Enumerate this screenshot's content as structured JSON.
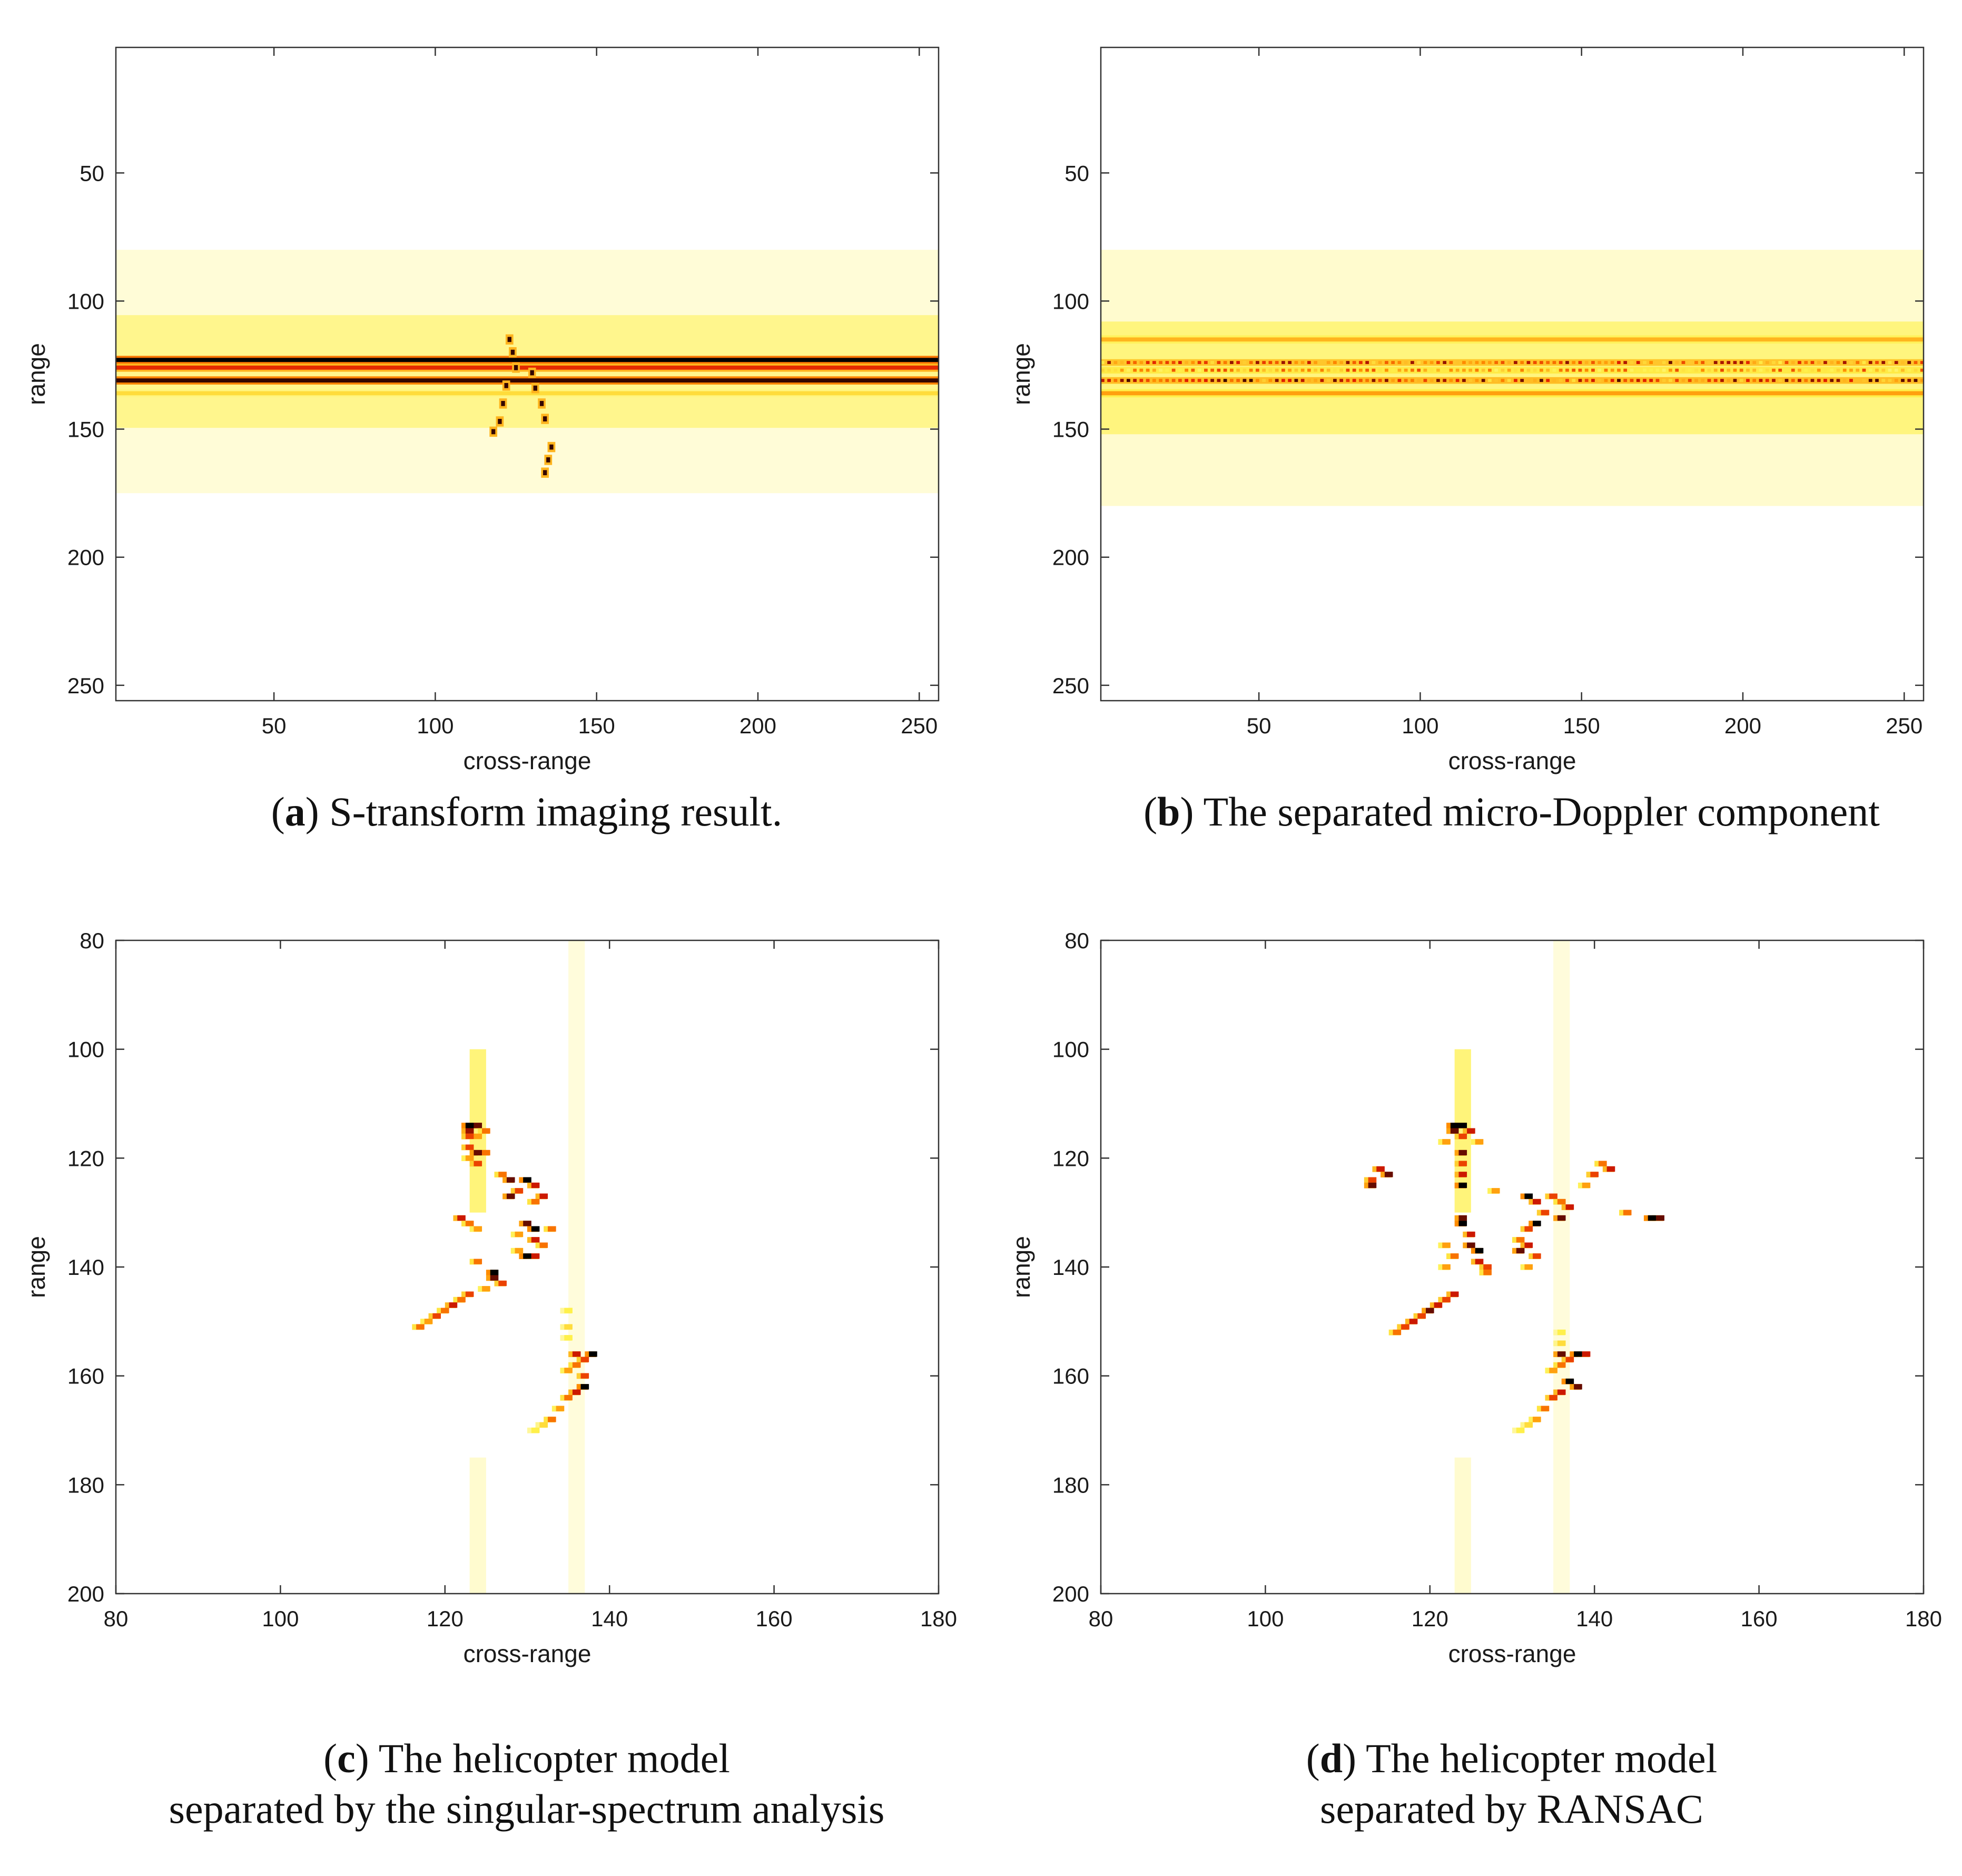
{
  "colors": {
    "ink": "#1a1a1a",
    "axis": "#333333",
    "map_low": "#ffffff",
    "map_mid1": "#fff04a",
    "map_mid2": "#ff8c00",
    "map_mid3": "#e01b00",
    "map_high": "#000000"
  },
  "chart_data": [
    {
      "type": "heatmap",
      "id": "a",
      "panel_letter": "a",
      "caption_lines": [
        "S-transform imaging result."
      ],
      "xlabel": "cross-range",
      "ylabel": "range",
      "xlim": [
        1,
        256
      ],
      "ylim": [
        1,
        256
      ],
      "y_reversed": true,
      "xticks": [
        50,
        100,
        150,
        200,
        250
      ],
      "yticks": [
        50,
        100,
        150,
        200,
        250
      ],
      "colormap": "hot (inverted)",
      "features": [
        {
          "kind": "band",
          "range": 123,
          "value": 1.0
        },
        {
          "kind": "band",
          "range": 126,
          "value": 0.75
        },
        {
          "kind": "band",
          "range": 131,
          "value": 0.95
        },
        {
          "kind": "band",
          "range": 136,
          "value": 0.35
        },
        {
          "kind": "haze",
          "from": 80,
          "to": 175,
          "value": 0.12
        },
        {
          "kind": "scatterer",
          "points": [
            [
              123,
              115
            ],
            [
              124,
              120
            ],
            [
              125,
              126
            ],
            [
              122,
              133
            ],
            [
              121,
              140
            ],
            [
              120,
              147
            ],
            [
              118,
              151
            ],
            [
              130,
              128
            ],
            [
              131,
              134
            ],
            [
              133,
              140
            ],
            [
              134,
              146
            ],
            [
              136,
              157
            ],
            [
              135,
              162
            ],
            [
              134,
              167
            ]
          ]
        }
      ]
    },
    {
      "type": "heatmap",
      "id": "b",
      "panel_letter": "b",
      "caption_lines": [
        "The separated micro-Doppler component"
      ],
      "xlabel": "cross-range",
      "ylabel": "range",
      "xlim": [
        1,
        256
      ],
      "ylim": [
        1,
        256
      ],
      "y_reversed": true,
      "xticks": [
        50,
        100,
        150,
        200,
        250
      ],
      "yticks": [
        50,
        100,
        150,
        200,
        250
      ],
      "colormap": "hot (inverted)",
      "features": [
        {
          "kind": "band",
          "range": 115,
          "value": 0.45
        },
        {
          "kind": "dashed_band",
          "range": 124,
          "value": 0.9
        },
        {
          "kind": "dashed_band",
          "range": 127,
          "value": 0.7
        },
        {
          "kind": "dashed_band",
          "range": 131,
          "value": 0.95
        },
        {
          "kind": "band",
          "range": 136,
          "value": 0.5
        },
        {
          "kind": "haze",
          "from": 80,
          "to": 180,
          "value": 0.15
        }
      ]
    },
    {
      "type": "heatmap",
      "id": "c",
      "panel_letter": "c",
      "caption_lines": [
        "The helicopter model",
        "separated by the singular-spectrum analysis"
      ],
      "xlabel": "cross-range",
      "ylabel": "range",
      "xlim": [
        80,
        180
      ],
      "ylim": [
        80,
        200
      ],
      "y_reversed": true,
      "xticks": [
        80,
        100,
        120,
        140,
        160,
        180
      ],
      "yticks": [
        80,
        100,
        120,
        140,
        160,
        180,
        200
      ],
      "colormap": "hot (inverted)",
      "cells": [
        [
          123,
          114,
          1.0
        ],
        [
          124,
          114,
          0.9
        ],
        [
          123,
          115,
          0.85
        ],
        [
          125,
          115,
          0.6
        ],
        [
          123,
          116,
          0.7
        ],
        [
          124,
          116,
          0.5
        ],
        [
          123,
          118,
          0.7
        ],
        [
          124,
          119,
          0.9
        ],
        [
          125,
          119,
          0.6
        ],
        [
          123,
          120,
          0.5
        ],
        [
          124,
          121,
          0.7
        ],
        [
          127,
          123,
          0.6
        ],
        [
          128,
          124,
          0.9
        ],
        [
          130,
          124,
          1.0
        ],
        [
          131,
          125,
          0.8
        ],
        [
          129,
          126,
          0.7
        ],
        [
          128,
          127,
          0.9
        ],
        [
          132,
          127,
          0.8
        ],
        [
          131,
          128,
          0.6
        ],
        [
          122,
          131,
          0.8
        ],
        [
          123,
          132,
          0.6
        ],
        [
          124,
          133,
          0.5
        ],
        [
          130,
          132,
          0.9
        ],
        [
          131,
          133,
          1.0
        ],
        [
          133,
          133,
          0.6
        ],
        [
          129,
          134,
          0.5
        ],
        [
          131,
          135,
          0.8
        ],
        [
          132,
          136,
          0.6
        ],
        [
          129,
          137,
          0.5
        ],
        [
          130,
          138,
          1.0
        ],
        [
          131,
          138,
          0.8
        ],
        [
          124,
          139,
          0.6
        ],
        [
          126,
          141,
          1.0
        ],
        [
          126,
          142,
          0.9
        ],
        [
          127,
          143,
          0.7
        ],
        [
          125,
          144,
          0.5
        ],
        [
          123,
          145,
          0.7
        ],
        [
          122,
          146,
          0.6
        ],
        [
          121,
          147,
          0.8
        ],
        [
          120,
          148,
          0.6
        ],
        [
          119,
          149,
          0.7
        ],
        [
          118,
          150,
          0.5
        ],
        [
          117,
          151,
          0.6
        ],
        [
          135,
          148,
          0.3
        ],
        [
          135,
          151,
          0.35
        ],
        [
          135,
          153,
          0.3
        ],
        [
          136,
          156,
          0.8
        ],
        [
          138,
          156,
          1.0
        ],
        [
          137,
          157,
          0.7
        ],
        [
          136,
          158,
          0.6
        ],
        [
          135,
          159,
          0.5
        ],
        [
          137,
          160,
          0.7
        ],
        [
          137,
          162,
          1.0
        ],
        [
          136,
          163,
          0.8
        ],
        [
          135,
          164,
          0.6
        ],
        [
          134,
          166,
          0.5
        ],
        [
          133,
          168,
          0.6
        ],
        [
          132,
          169,
          0.35
        ],
        [
          131,
          170,
          0.3
        ]
      ]
    },
    {
      "type": "heatmap",
      "id": "d",
      "panel_letter": "d",
      "caption_lines": [
        "The helicopter model",
        "separated by RANSAC"
      ],
      "xlabel": "cross-range",
      "ylabel": "range",
      "xlim": [
        80,
        180
      ],
      "ylim": [
        80,
        200
      ],
      "y_reversed": true,
      "xticks": [
        80,
        100,
        120,
        140,
        160,
        180
      ],
      "yticks": [
        80,
        100,
        120,
        140,
        160,
        180,
        200
      ],
      "colormap": "hot (inverted)",
      "cells": [
        [
          123,
          114,
          1.0
        ],
        [
          124,
          114,
          1.0
        ],
        [
          125,
          115,
          0.8
        ],
        [
          123,
          115,
          0.9
        ],
        [
          124,
          116,
          0.7
        ],
        [
          122,
          117,
          0.5
        ],
        [
          126,
          117,
          0.5
        ],
        [
          124,
          119,
          0.9
        ],
        [
          124,
          121,
          0.7
        ],
        [
          124,
          123,
          0.8
        ],
        [
          124,
          125,
          1.0
        ],
        [
          114,
          122,
          0.8
        ],
        [
          115,
          123,
          0.9
        ],
        [
          113,
          124,
          0.7
        ],
        [
          113,
          125,
          0.9
        ],
        [
          141,
          121,
          0.6
        ],
        [
          142,
          122,
          0.8
        ],
        [
          140,
          123,
          0.7
        ],
        [
          139,
          125,
          0.5
        ],
        [
          128,
          126,
          0.5
        ],
        [
          132,
          127,
          1.0
        ],
        [
          133,
          128,
          0.8
        ],
        [
          135,
          127,
          0.7
        ],
        [
          136,
          128,
          0.6
        ],
        [
          137,
          129,
          0.8
        ],
        [
          134,
          130,
          0.7
        ],
        [
          136,
          131,
          0.9
        ],
        [
          133,
          132,
          1.0
        ],
        [
          132,
          133,
          0.7
        ],
        [
          147,
          131,
          1.0
        ],
        [
          148,
          131,
          0.9
        ],
        [
          144,
          130,
          0.6
        ],
        [
          124,
          131,
          0.9
        ],
        [
          124,
          132,
          1.0
        ],
        [
          125,
          134,
          0.8
        ],
        [
          125,
          136,
          0.9
        ],
        [
          126,
          137,
          1.0
        ],
        [
          126,
          139,
          0.8
        ],
        [
          127,
          140,
          0.7
        ],
        [
          127,
          141,
          0.6
        ],
        [
          131,
          135,
          0.6
        ],
        [
          132,
          136,
          0.8
        ],
        [
          131,
          137,
          0.9
        ],
        [
          133,
          138,
          0.7
        ],
        [
          132,
          140,
          0.5
        ],
        [
          122,
          136,
          0.5
        ],
        [
          123,
          138,
          0.6
        ],
        [
          122,
          140,
          0.5
        ],
        [
          123,
          145,
          0.8
        ],
        [
          122,
          146,
          0.7
        ],
        [
          121,
          147,
          0.8
        ],
        [
          120,
          148,
          0.9
        ],
        [
          119,
          149,
          0.7
        ],
        [
          118,
          150,
          0.8
        ],
        [
          117,
          151,
          0.7
        ],
        [
          116,
          152,
          0.6
        ],
        [
          136,
          152,
          0.3
        ],
        [
          136,
          154,
          0.35
        ],
        [
          136,
          156,
          0.9
        ],
        [
          138,
          156,
          1.0
        ],
        [
          139,
          156,
          0.8
        ],
        [
          137,
          157,
          0.7
        ],
        [
          136,
          158,
          0.6
        ],
        [
          135,
          159,
          0.5
        ],
        [
          137,
          161,
          1.0
        ],
        [
          138,
          162,
          0.9
        ],
        [
          136,
          163,
          0.8
        ],
        [
          135,
          164,
          0.7
        ],
        [
          134,
          166,
          0.6
        ],
        [
          133,
          168,
          0.5
        ],
        [
          132,
          169,
          0.35
        ],
        [
          131,
          170,
          0.3
        ]
      ]
    }
  ]
}
